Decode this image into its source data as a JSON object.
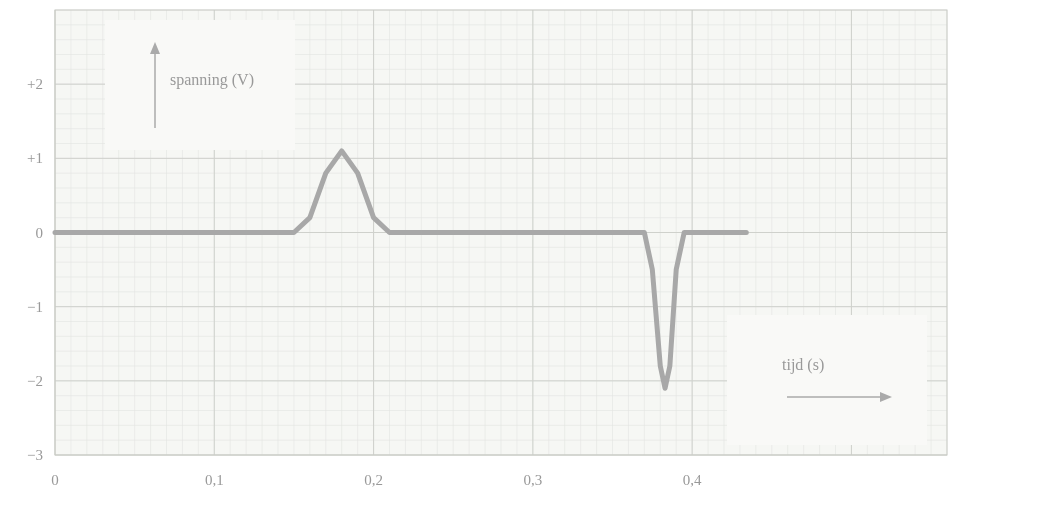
{
  "chart_data": {
    "type": "line",
    "xlabel": "tijd (s)",
    "ylabel": "spanning (V)",
    "xlim": [
      0,
      0.56
    ],
    "xticks": [
      {
        "value": 0,
        "label": "0"
      },
      {
        "value": 0.1,
        "label": "0,1"
      },
      {
        "value": 0.2,
        "label": "0,2"
      },
      {
        "value": 0.3,
        "label": "0,3"
      },
      {
        "value": 0.4,
        "label": "0,4"
      },
      {
        "value": 0.5,
        "label": null
      }
    ],
    "ylim": [
      -3,
      3
    ],
    "yticks": [
      {
        "value": -3,
        "label": "−3"
      },
      {
        "value": -2,
        "label": "−2"
      },
      {
        "value": -1,
        "label": "−1"
      },
      0,
      {
        "value": 1,
        "label": "+1"
      },
      {
        "value": 2,
        "label": "+2"
      }
    ],
    "grid": true,
    "marker": "none",
    "line_style": "solid",
    "series": [
      {
        "color": "#a8a8a8",
        "x": [
          0,
          0.15,
          0.16,
          0.17,
          0.18,
          0.19,
          0.2,
          0.21,
          0.37,
          0.375,
          0.38,
          0.383,
          0.386,
          0.39,
          0.395,
          0.434
        ],
        "values": [
          0,
          0,
          0.2,
          0.8,
          1.1,
          0.8,
          0.2,
          0,
          0,
          -0.5,
          -1.8,
          -2.1,
          -1.8,
          -0.5,
          0,
          0
        ]
      }
    ]
  }
}
